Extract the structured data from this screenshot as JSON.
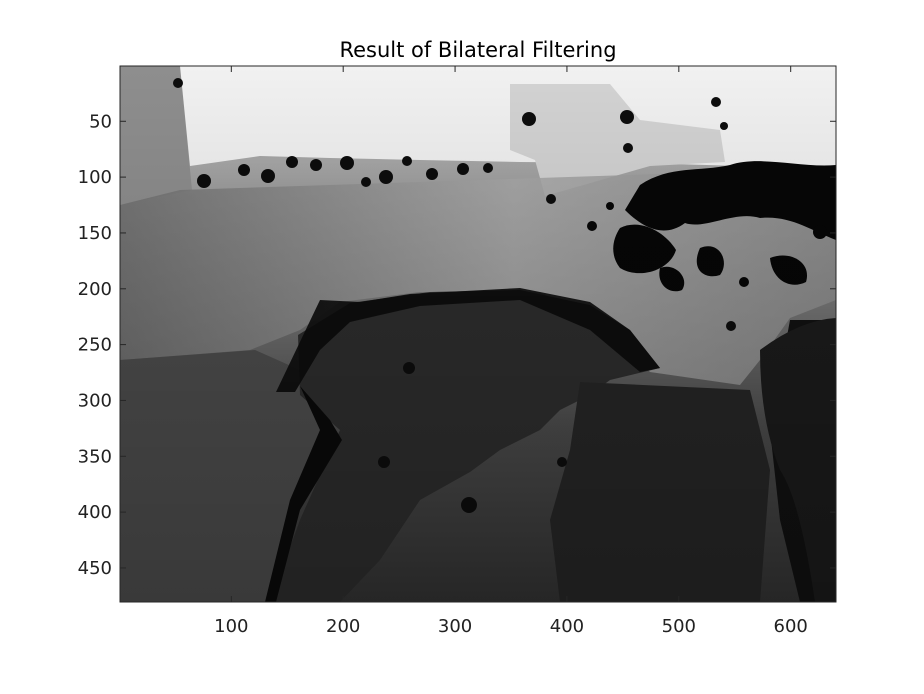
{
  "figure": {
    "title": "Result of Bilateral Filtering"
  },
  "image": {
    "type": "grayscale depth image",
    "colormap": "gray",
    "x_range": [
      1,
      640
    ],
    "y_range": [
      1,
      480
    ],
    "y_direction": "down"
  },
  "axes": {
    "x_ticks": [
      {
        "value": 100,
        "label": "100"
      },
      {
        "value": 200,
        "label": "200"
      },
      {
        "value": 300,
        "label": "300"
      },
      {
        "value": 400,
        "label": "400"
      },
      {
        "value": 500,
        "label": "500"
      },
      {
        "value": 600,
        "label": "600"
      }
    ],
    "y_ticks": [
      {
        "value": 50,
        "label": "50"
      },
      {
        "value": 100,
        "label": "100"
      },
      {
        "value": 150,
        "label": "150"
      },
      {
        "value": 200,
        "label": "200"
      },
      {
        "value": 250,
        "label": "250"
      },
      {
        "value": 300,
        "label": "300"
      },
      {
        "value": 350,
        "label": "350"
      },
      {
        "value": 400,
        "label": "400"
      },
      {
        "value": 450,
        "label": "450"
      }
    ]
  }
}
